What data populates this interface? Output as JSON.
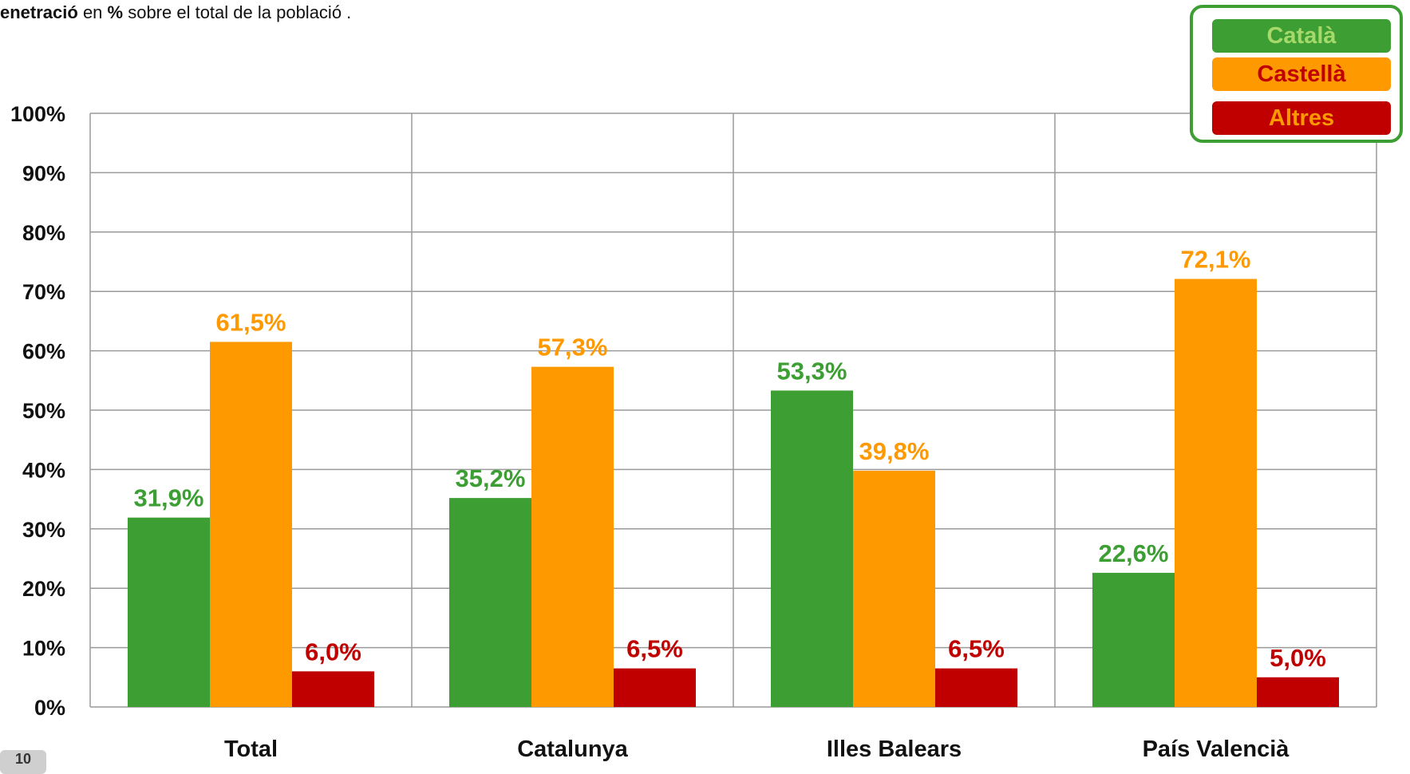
{
  "subtitle": {
    "part1": "enetració",
    "part2": " en ",
    "part3": "%",
    "part4": " sobre el total de la població ."
  },
  "page_tab": "10",
  "colors": {
    "catala": "#3d9e34",
    "castella": "#ff9900",
    "altres": "#c00000",
    "grid": "#9a9a9a",
    "legend_border": "#3d9e34"
  },
  "legend": [
    {
      "label": "Català",
      "bg": "#3d9e34",
      "text_color": "#a6d96a"
    },
    {
      "label": "Castellà",
      "bg": "#ff9900",
      "text_color": "#c00000"
    },
    {
      "label": "Altres",
      "bg": "#c00000",
      "text_color": "#ff9900"
    }
  ],
  "chart_data": {
    "type": "bar",
    "categories": [
      "Total",
      "Catalunya",
      "Illes Balears",
      "País Valencià"
    ],
    "series": [
      {
        "name": "Català",
        "values": [
          31.9,
          35.2,
          53.3,
          22.6
        ],
        "labels": [
          "31,9%",
          "35,2%",
          "53,3%",
          "22,6%"
        ]
      },
      {
        "name": "Castellà",
        "values": [
          61.5,
          57.3,
          39.8,
          72.1
        ],
        "labels": [
          "61,5%",
          "57,3%",
          "39,8%",
          "72,1%"
        ]
      },
      {
        "name": "Altres",
        "values": [
          6.0,
          6.5,
          6.5,
          5.0
        ],
        "labels": [
          "6,0%",
          "6,5%",
          "6,5%",
          "5,0%"
        ]
      }
    ],
    "ylim": [
      0,
      100
    ],
    "yticks": [
      0,
      10,
      20,
      30,
      40,
      50,
      60,
      70,
      80,
      90,
      100
    ],
    "ytick_labels": [
      "0%",
      "10%",
      "20%",
      "30%",
      "40%",
      "50%",
      "60%",
      "70%",
      "80%",
      "90%",
      "100%"
    ],
    "grid": true,
    "legend_position": "top-right"
  }
}
